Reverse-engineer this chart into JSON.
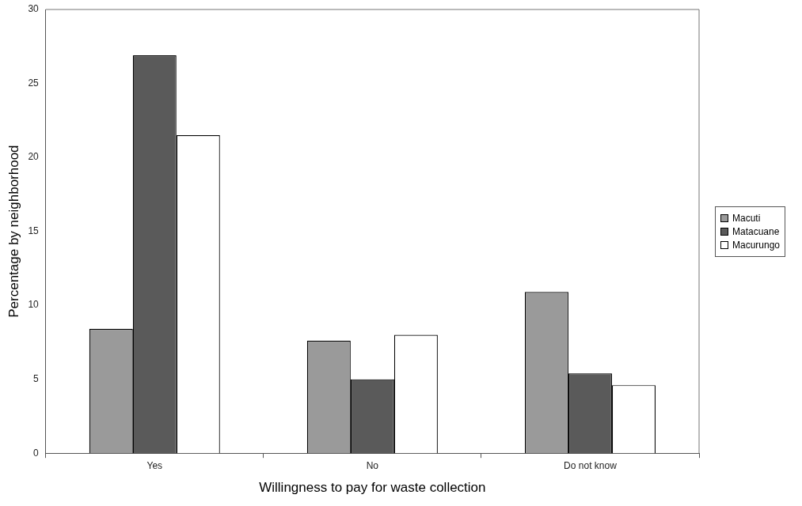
{
  "chart_data": {
    "type": "bar",
    "xlabel": "Willingness to pay for waste collection",
    "ylabel": "Percentage by neighborhood",
    "categories": [
      "Yes",
      "No",
      "Do not know"
    ],
    "series": [
      {
        "name": "Macuti",
        "color": "#9a9a9a",
        "values": [
          8.4,
          7.6,
          10.9
        ]
      },
      {
        "name": "Matacuane",
        "color": "#5a5a5a",
        "values": [
          26.9,
          5.0,
          5.4
        ]
      },
      {
        "name": "Macurungo",
        "color": "#ffffff",
        "values": [
          21.5,
          8.0,
          4.6
        ]
      }
    ],
    "ylim": [
      0,
      30
    ],
    "yticks": [
      0,
      5,
      10,
      15,
      20,
      25,
      30
    ],
    "grid": false,
    "legend": "right"
  }
}
